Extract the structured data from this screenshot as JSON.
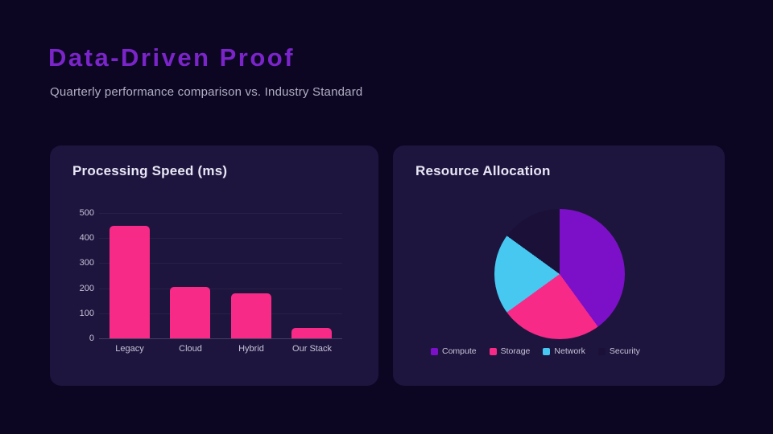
{
  "page": {
    "title": "Data-Driven Proof",
    "subtitle": "Quarterly performance comparison vs. Industry Standard"
  },
  "colors": {
    "background": "#0C0623",
    "card": "#1E153E",
    "title_accent": "#7B24C9",
    "bar_pink": "#F82A87",
    "axis_text": "#C7C4D8"
  },
  "chart_data": [
    {
      "type": "bar",
      "title": "Processing Speed (ms)",
      "categories": [
        "Legacy",
        "Cloud",
        "Hybrid",
        "Our Stack"
      ],
      "values": [
        450,
        205,
        178,
        42
      ],
      "bar_color": "#F82A87",
      "xlabel": "",
      "ylabel": "",
      "ylim": [
        0,
        500
      ],
      "yticks": [
        0,
        100,
        200,
        300,
        400,
        500
      ],
      "grid": true,
      "legend": "none"
    },
    {
      "type": "pie",
      "title": "Resource Allocation",
      "start_angle_deg": 0,
      "direction": "clockwise",
      "legend_position": "bottom",
      "segments": [
        {
          "label": "Compute",
          "value": 40,
          "color": "#7C10C8"
        },
        {
          "label": "Storage",
          "value": 25,
          "color": "#F82A87"
        },
        {
          "label": "Network",
          "value": 20,
          "color": "#46C8F1"
        },
        {
          "label": "Security",
          "value": 15,
          "color": "#1A1038"
        }
      ]
    }
  ]
}
